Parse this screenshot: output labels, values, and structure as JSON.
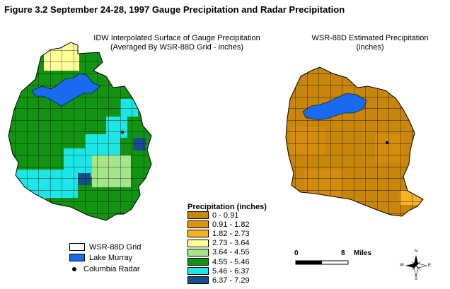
{
  "figure_title": "Figure 3.2   September 24-28, 1997 Gauge Precipitation and  Radar Precipitation",
  "left_map": {
    "title_line1": "IDW Interpolated Surface of Gauge Precipitation",
    "title_line2": "(Averaged By WSR-88D Grid - inches)"
  },
  "right_map": {
    "title_line1": "WSR-88D Estimated Precipitation",
    "title_line2": "(inches)"
  },
  "legend": {
    "title": "Precipitation (inches)",
    "classes": [
      {
        "label": "0 - 0.91",
        "color": "#c8860a"
      },
      {
        "label": "0.91 - 1.82",
        "color": "#e1930e"
      },
      {
        "label": "1.82 - 2.73",
        "color": "#f5b325"
      },
      {
        "label": "2.73 - 3.64",
        "color": "#ffff9a"
      },
      {
        "label": "3.64 - 4.55",
        "color": "#a7e58a"
      },
      {
        "label": "4.55 - 5.46",
        "color": "#129412"
      },
      {
        "label": "5.46 - 6.37",
        "color": "#1ce6e6"
      },
      {
        "label": "6.37 - 7.29",
        "color": "#174e8e"
      }
    ]
  },
  "key": {
    "grid_label": "WSR-88D Grid",
    "lake_label": "Lake Murray",
    "radar_label": "Columbia Radar",
    "lake_color": "#1a6af0"
  },
  "scale_bar": {
    "start": "0",
    "end": "8",
    "unit": "Miles"
  },
  "compass": {
    "n": "N",
    "s": "S",
    "e": "E",
    "w": "W"
  }
}
